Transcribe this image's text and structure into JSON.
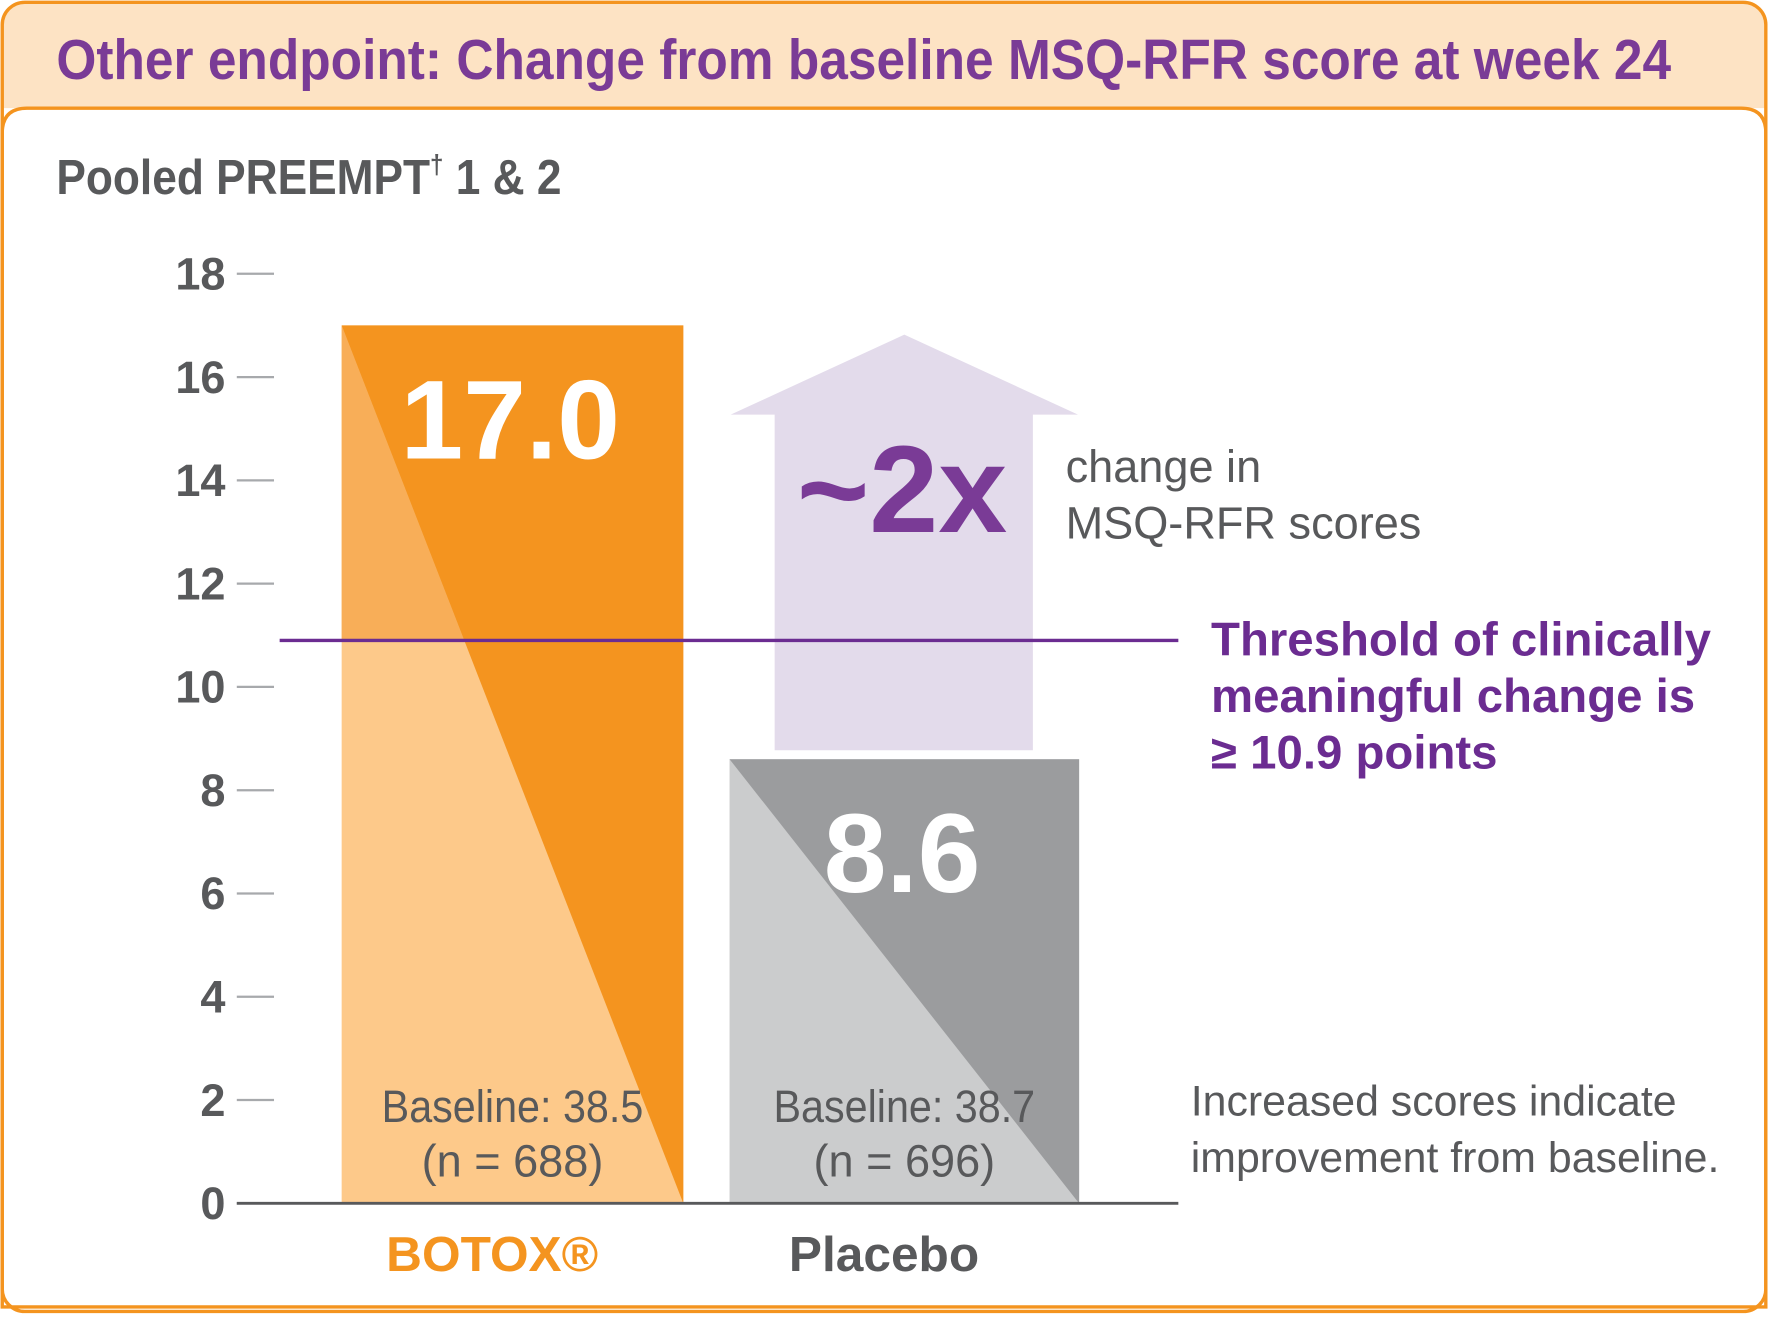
{
  "header": {
    "title": "Other endpoint: Change from baseline MSQ-RFR score at week 24"
  },
  "subtitle": {
    "text": "Pooled PREEMPT",
    "sup": "†",
    "suffix": " 1 & 2"
  },
  "colors": {
    "orange": "#f4941f",
    "orange_light": "#fdc98a",
    "orange_mid": "#f8ae58",
    "gray_dark": "#9b9c9e",
    "gray_light": "#cbcccd",
    "purple": "#6b2c91",
    "arrow": "#e3dbeb",
    "header_bg": "#fde3c4",
    "text_gray": "#58595b"
  },
  "chart_data": {
    "type": "bar",
    "categories": [
      "BOTOX®",
      "Placebo"
    ],
    "values": [
      17.0,
      8.6
    ],
    "value_labels": [
      "17.0",
      "8.6"
    ],
    "baseline_labels": [
      [
        "Baseline: 38.5",
        "(n = 688)"
      ],
      [
        "Baseline: 38.7",
        "(n = 696)"
      ]
    ],
    "ylim": [
      0,
      18
    ],
    "yticks": [
      "0",
      "2",
      "4",
      "6",
      "8",
      "10",
      "12",
      "14",
      "16",
      "18"
    ],
    "threshold": 10.9,
    "threshold_label": [
      "Threshold of clinically",
      "meaningful change is",
      "≥ 10.9 points"
    ],
    "arrow_label": "~2x",
    "arrow_caption": [
      "change in",
      "MSQ-RFR scores"
    ],
    "note": [
      "Increased scores indicate",
      "improvement from baseline."
    ],
    "grid": false
  }
}
